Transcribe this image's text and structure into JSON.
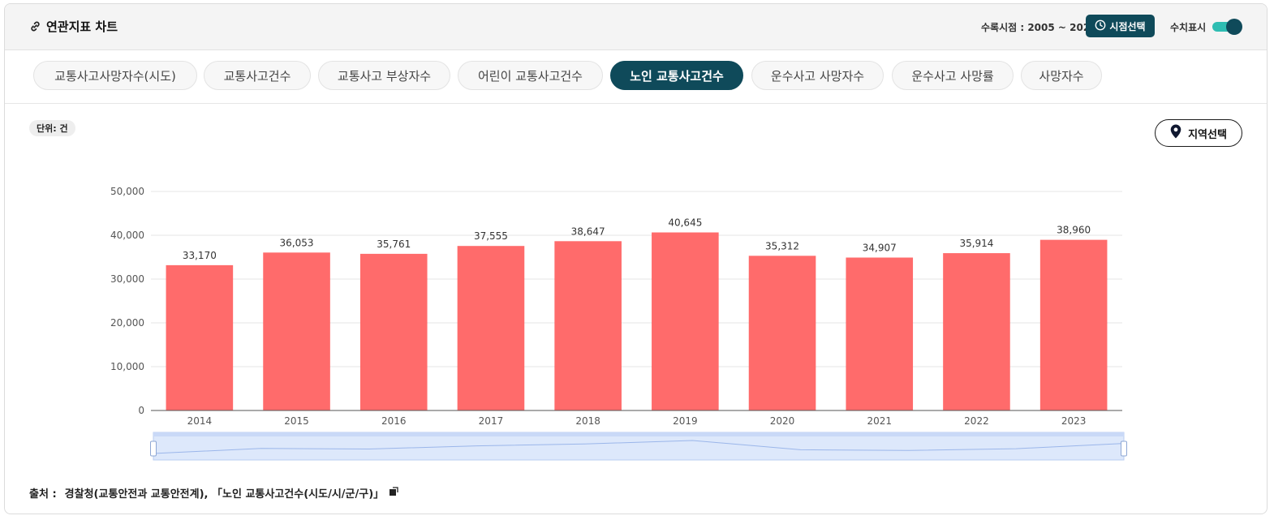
{
  "header": {
    "title": "연관지표 차트",
    "period_text": "수록시점 : 2005 ~ 2023",
    "period_button": "시점선택",
    "toggle_label": "수치표시"
  },
  "tabs": [
    {
      "label": "교통사고사망자수(시도)",
      "active": false
    },
    {
      "label": "교통사고건수",
      "active": false
    },
    {
      "label": "교통사고 부상자수",
      "active": false
    },
    {
      "label": "어린이 교통사고건수",
      "active": false
    },
    {
      "label": "노인 교통사고건수",
      "active": true
    },
    {
      "label": "운수사고 사망자수",
      "active": false
    },
    {
      "label": "운수사고 사망률",
      "active": false
    },
    {
      "label": "사망자수",
      "active": false
    }
  ],
  "unit_label": "단위: 건",
  "region_button": "지역선택",
  "source": {
    "label": "출처 :",
    "text": "경찰청(교통안전과 교통안전계), 「노인 교통사고건수(시도/시/군/구)」"
  },
  "colors": {
    "bar": "#ff6b6b",
    "accent": "#0f4a5a",
    "toggle_track": "#2ebdb2",
    "zoom_fill": "#dde8fb"
  },
  "icons": {
    "title": "link-icon",
    "period": "clock-icon",
    "region": "map-pin-icon",
    "source": "external-link-icon"
  },
  "chart_data": {
    "type": "bar",
    "categories": [
      "2014",
      "2015",
      "2016",
      "2017",
      "2018",
      "2019",
      "2020",
      "2021",
      "2022",
      "2023"
    ],
    "values": [
      33170,
      36053,
      35761,
      37555,
      38647,
      40645,
      35312,
      34907,
      35914,
      38960
    ],
    "data_labels": [
      "33,170",
      "36,053",
      "35,761",
      "37,555",
      "38,647",
      "40,645",
      "35,312",
      "34,907",
      "35,914",
      "38,960"
    ],
    "y_ticks": [
      0,
      10000,
      20000,
      30000,
      40000,
      50000
    ],
    "y_tick_labels": [
      "0",
      "10,000",
      "20,000",
      "30,000",
      "40,000",
      "50,000"
    ],
    "ylim": [
      0,
      50000
    ],
    "grid": true,
    "show_values": true,
    "zoom_slider": true,
    "title": "",
    "xlabel": "",
    "ylabel": ""
  }
}
